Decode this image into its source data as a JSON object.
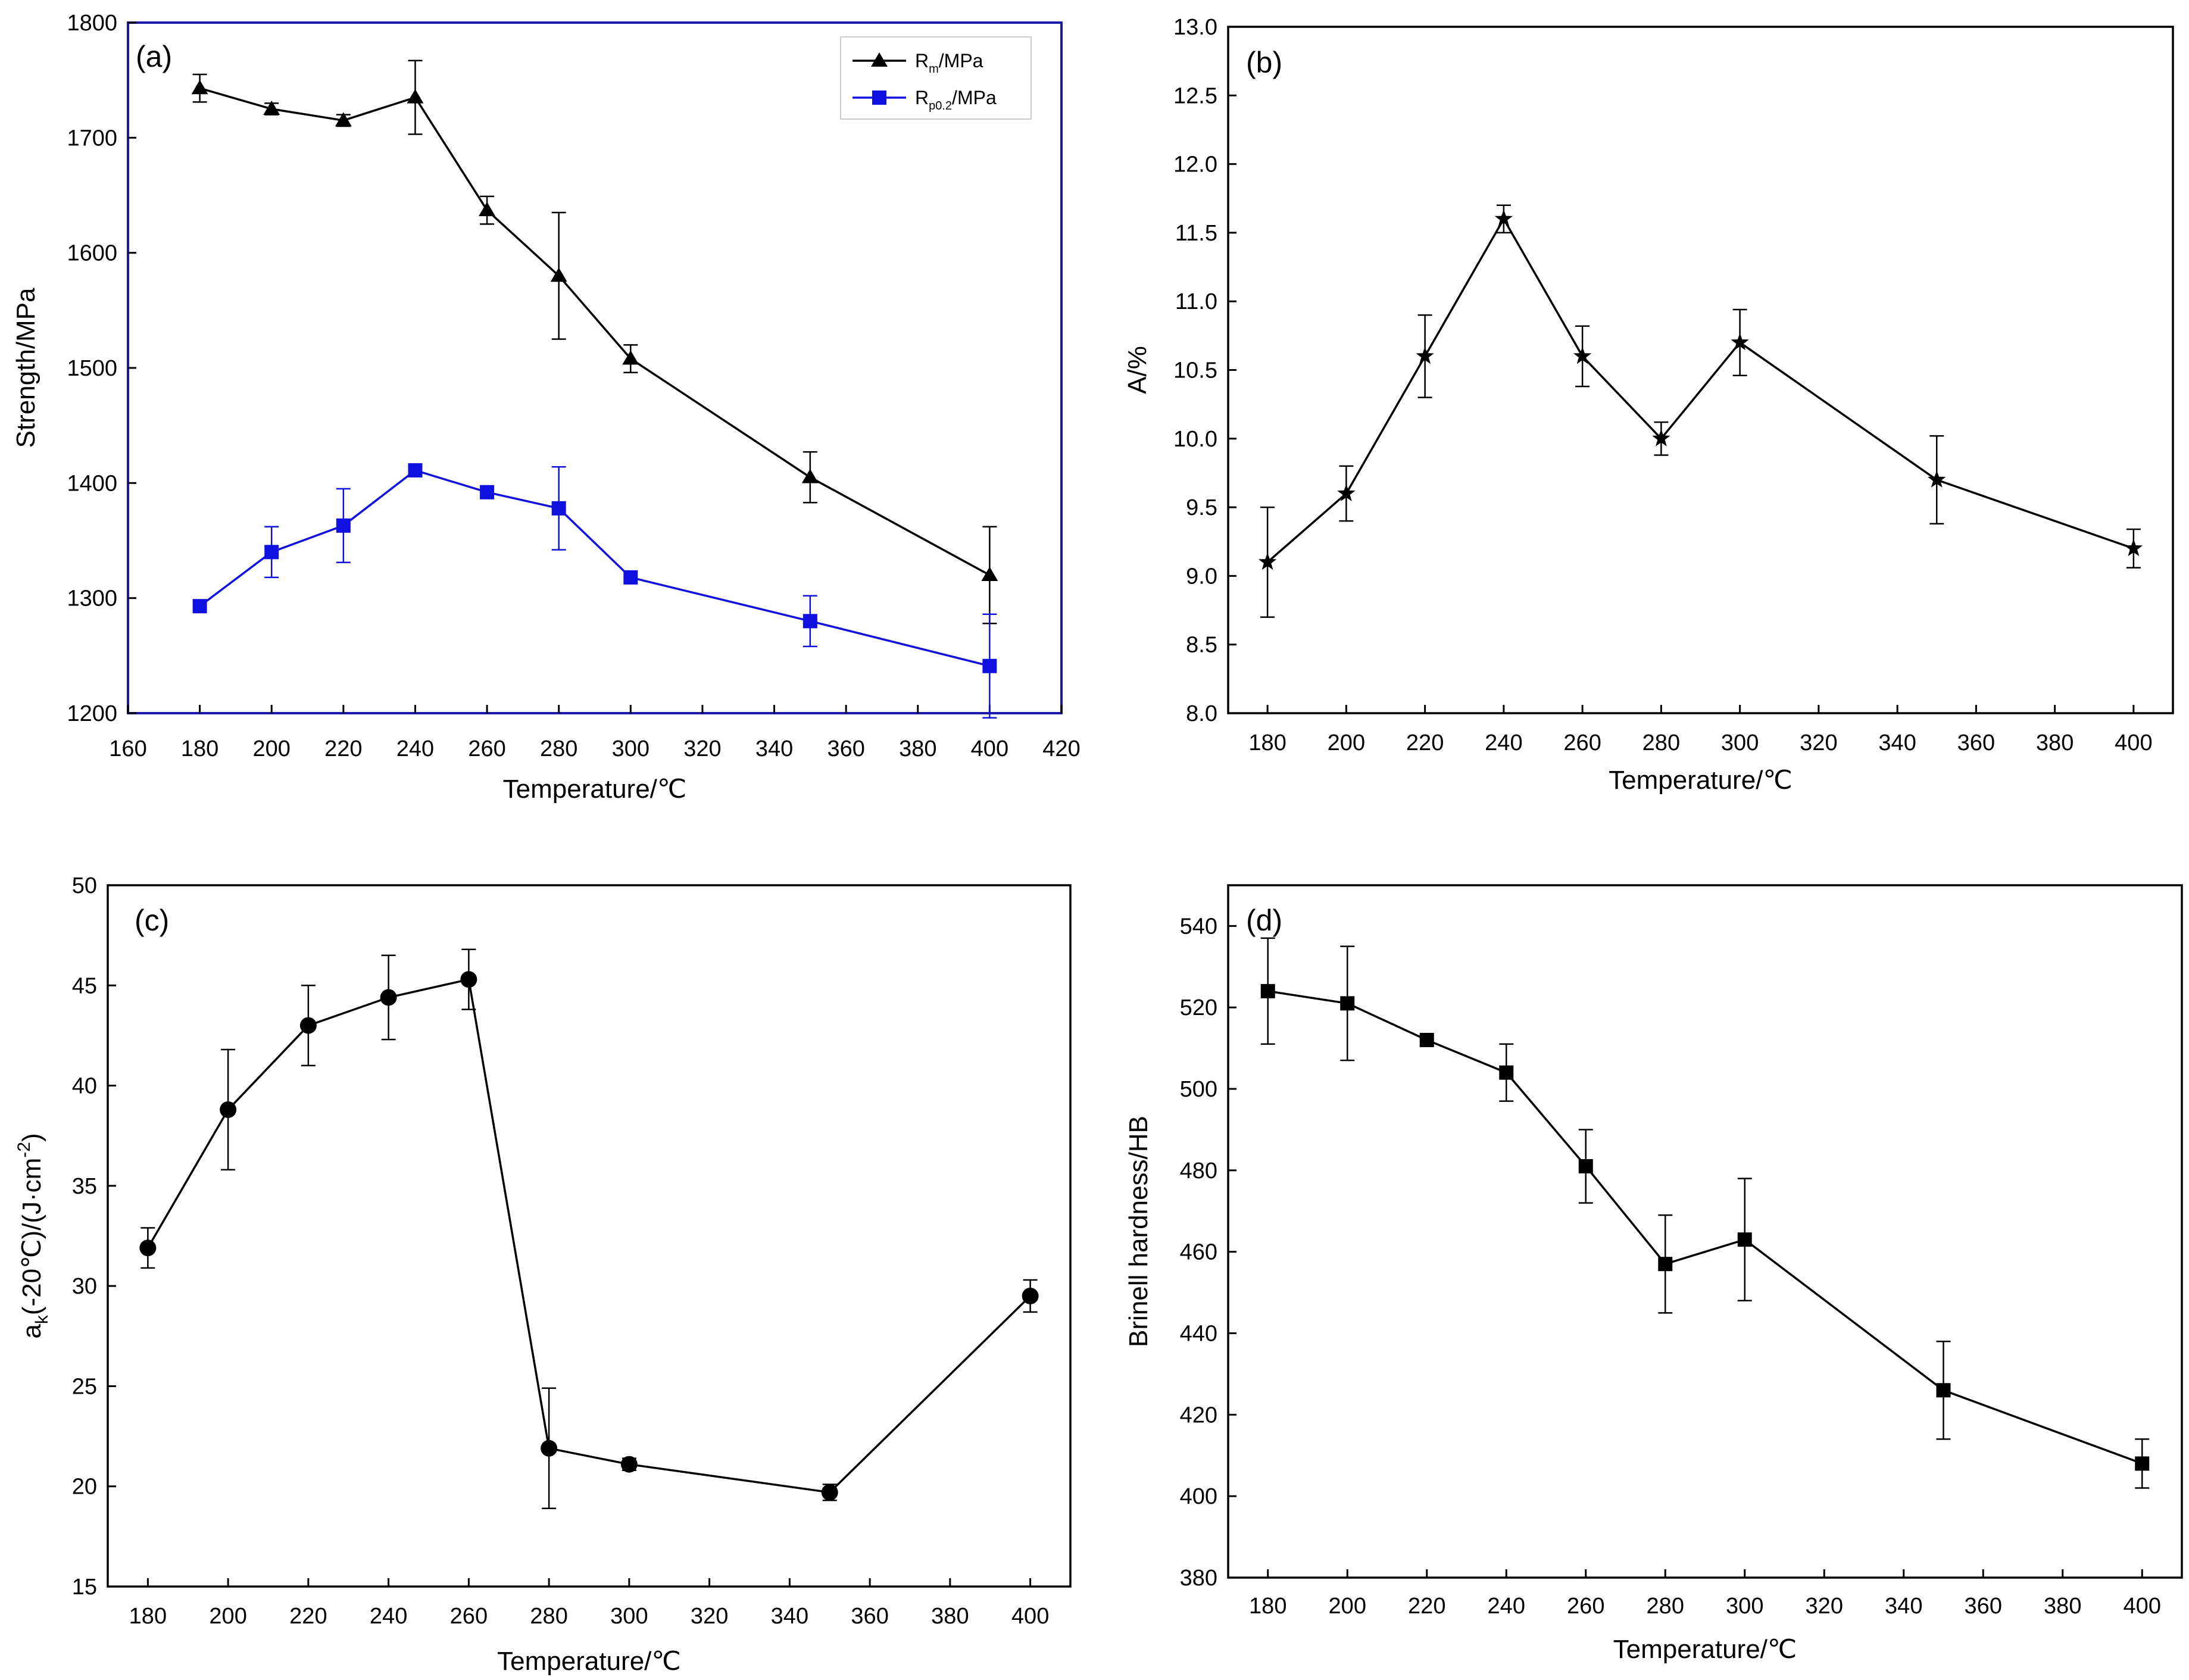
{
  "chart_data": [
    {
      "panel": "(a)",
      "type": "line",
      "xlabel": "Temperature/℃",
      "ylabel": "Strength/MPa",
      "xlim": [
        160,
        420
      ],
      "ylim": [
        1200,
        1800
      ],
      "xticks": [
        160,
        180,
        200,
        220,
        240,
        260,
        280,
        300,
        320,
        340,
        360,
        380,
        400,
        420
      ],
      "yticks": [
        1200,
        1300,
        1400,
        1500,
        1600,
        1700,
        1800
      ],
      "legend_position": "top-right",
      "x": [
        180,
        200,
        220,
        240,
        260,
        280,
        300,
        350,
        400
      ],
      "series": [
        {
          "name": "Rm/MPa",
          "legend_main": "R",
          "legend_sub": "m",
          "legend_suffix": "/MPa",
          "marker": "triangle",
          "color": "#000000",
          "values": [
            1743,
            1725,
            1715,
            1735,
            1637,
            1580,
            1508,
            1405,
            1320
          ],
          "errors": [
            12,
            5,
            5,
            32,
            12,
            55,
            12,
            22,
            42
          ]
        },
        {
          "name": "Rp0.2/MPa",
          "legend_main": "R",
          "legend_sub": "p0.2",
          "legend_suffix": "/MPa",
          "marker": "square",
          "color": "#1010e0",
          "values": [
            1293,
            1340,
            1363,
            1411,
            1392,
            1378,
            1318,
            1280,
            1241
          ],
          "errors": [
            0,
            22,
            32,
            0,
            0,
            36,
            0,
            22,
            45
          ]
        }
      ]
    },
    {
      "panel": "(b)",
      "type": "line",
      "xlabel": "Temperature/℃",
      "ylabel": "A/%",
      "xlim": [
        170,
        410
      ],
      "ylim": [
        8.0,
        13.0
      ],
      "xticks": [
        180,
        200,
        220,
        240,
        260,
        280,
        300,
        320,
        340,
        360,
        380,
        400
      ],
      "yticks": [
        "8.0",
        "8.5",
        "9.0",
        "9.5",
        "10.0",
        "10.5",
        "11.0",
        "11.5",
        "12.0",
        "12.5",
        "13.0"
      ],
      "x": [
        180,
        200,
        220,
        240,
        260,
        280,
        300,
        350,
        400
      ],
      "series": [
        {
          "marker": "star",
          "color": "#000000",
          "values": [
            9.1,
            9.6,
            10.6,
            11.6,
            10.6,
            10.0,
            10.7,
            9.7,
            9.2
          ],
          "errors": [
            0.4,
            0.2,
            0.3,
            0.1,
            0.22,
            0.12,
            0.24,
            0.32,
            0.14
          ]
        }
      ]
    },
    {
      "panel": "(c)",
      "type": "line",
      "xlabel": "Temperature/℃",
      "ylabel_main": "a",
      "ylabel_sub": "k",
      "ylabel_rest": "(-20℃)/(J·cm",
      "ylabel_sup": "-2",
      "ylabel_end": ")",
      "xlim": [
        170,
        410
      ],
      "ylim": [
        15,
        50
      ],
      "xticks": [
        180,
        200,
        220,
        240,
        260,
        280,
        300,
        320,
        340,
        360,
        380,
        400
      ],
      "yticks": [
        15,
        20,
        25,
        30,
        35,
        40,
        45,
        50
      ],
      "x": [
        180,
        200,
        220,
        240,
        260,
        280,
        300,
        350,
        400
      ],
      "series": [
        {
          "marker": "circle",
          "color": "#000000",
          "values": [
            31.9,
            38.8,
            43.0,
            44.4,
            45.3,
            21.9,
            21.1,
            19.7,
            29.5
          ],
          "errors": [
            1.0,
            3.0,
            2.0,
            2.1,
            1.5,
            3.0,
            0.3,
            0.4,
            0.8
          ]
        }
      ]
    },
    {
      "panel": "(d)",
      "type": "line",
      "xlabel": "Temperature/℃",
      "ylabel": "Brinell hardness/HB",
      "xlim": [
        170,
        410
      ],
      "ylim": [
        380,
        550
      ],
      "xticks": [
        180,
        200,
        220,
        240,
        260,
        280,
        300,
        320,
        340,
        360,
        380,
        400
      ],
      "yticks": [
        380,
        400,
        420,
        440,
        460,
        480,
        500,
        520,
        540
      ],
      "x": [
        180,
        200,
        220,
        240,
        260,
        280,
        300,
        350,
        400
      ],
      "series": [
        {
          "marker": "square",
          "color": "#000000",
          "values": [
            524,
            521,
            512,
            504,
            481,
            457,
            463,
            426,
            408
          ],
          "errors": [
            13,
            14,
            0,
            7,
            9,
            12,
            15,
            12,
            6
          ]
        }
      ]
    }
  ]
}
